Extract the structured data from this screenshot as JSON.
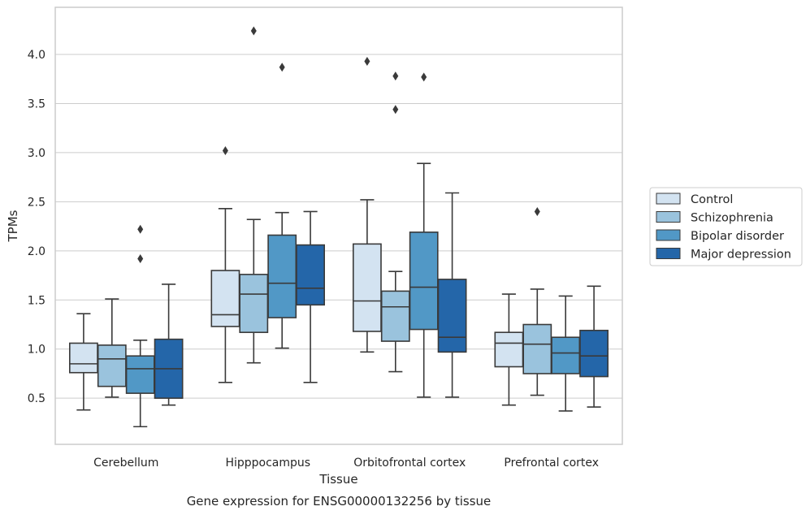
{
  "chart_data": {
    "type": "box",
    "xlabel": "Tissue",
    "ylabel": "TPMs",
    "caption": "Gene expression for ENSG00000132256 by tissue",
    "categories": [
      "Cerebellum",
      "Hipppocampus",
      "Orbitofrontal cortex",
      "Prefrontal cortex"
    ],
    "yticks": [
      0.5,
      1.0,
      1.5,
      2.0,
      2.5,
      3.0,
      3.5,
      4.0
    ],
    "ytick_labels": [
      "0.5",
      "1.0",
      "1.5",
      "2.0",
      "2.5",
      "3.0",
      "3.5",
      "4.0"
    ],
    "ylim": [
      0.03,
      4.48
    ],
    "grid": true,
    "legend_position": "right",
    "series": [
      {
        "name": "Control",
        "color": "#d3e3f1",
        "boxes": [
          {
            "whislo": 0.38,
            "q1": 0.76,
            "med": 0.85,
            "q3": 1.06,
            "whishi": 1.36,
            "fliers": []
          },
          {
            "whislo": 0.66,
            "q1": 1.23,
            "med": 1.35,
            "q3": 1.8,
            "whishi": 2.43,
            "fliers": [
              3.02
            ]
          },
          {
            "whislo": 0.97,
            "q1": 1.18,
            "med": 1.49,
            "q3": 2.07,
            "whishi": 2.52,
            "fliers": [
              3.93
            ]
          },
          {
            "whislo": 0.43,
            "q1": 0.82,
            "med": 1.06,
            "q3": 1.17,
            "whishi": 1.56,
            "fliers": []
          }
        ]
      },
      {
        "name": "Schizophrenia",
        "color": "#9ac3dd",
        "boxes": [
          {
            "whislo": 0.51,
            "q1": 0.62,
            "med": 0.9,
            "q3": 1.04,
            "whishi": 1.51,
            "fliers": []
          },
          {
            "whislo": 0.86,
            "q1": 1.17,
            "med": 1.56,
            "q3": 1.76,
            "whishi": 2.32,
            "fliers": [
              4.24
            ]
          },
          {
            "whislo": 0.77,
            "q1": 1.08,
            "med": 1.43,
            "q3": 1.59,
            "whishi": 1.79,
            "fliers": [
              3.44,
              3.78
            ]
          },
          {
            "whislo": 0.53,
            "q1": 0.75,
            "med": 1.05,
            "q3": 1.25,
            "whishi": 1.61,
            "fliers": [
              2.4
            ]
          }
        ]
      },
      {
        "name": "Bipolar disorder",
        "color": "#5198c6",
        "boxes": [
          {
            "whislo": 0.21,
            "q1": 0.55,
            "med": 0.8,
            "q3": 0.93,
            "whishi": 1.09,
            "fliers": [
              1.92,
              2.22
            ]
          },
          {
            "whislo": 1.01,
            "q1": 1.32,
            "med": 1.67,
            "q3": 2.16,
            "whishi": 2.39,
            "fliers": [
              3.87
            ]
          },
          {
            "whislo": 0.51,
            "q1": 1.2,
            "med": 1.63,
            "q3": 2.19,
            "whishi": 2.89,
            "fliers": [
              3.77
            ]
          },
          {
            "whislo": 0.37,
            "q1": 0.75,
            "med": 0.96,
            "q3": 1.12,
            "whishi": 1.54,
            "fliers": []
          }
        ]
      },
      {
        "name": "Major depression",
        "color": "#2466a9",
        "boxes": [
          {
            "whislo": 0.43,
            "q1": 0.5,
            "med": 0.8,
            "q3": 1.1,
            "whishi": 1.66,
            "fliers": []
          },
          {
            "whislo": 0.66,
            "q1": 1.45,
            "med": 1.62,
            "q3": 2.06,
            "whishi": 2.4,
            "fliers": []
          },
          {
            "whislo": 0.51,
            "q1": 0.97,
            "med": 1.12,
            "q3": 1.71,
            "whishi": 2.59,
            "fliers": []
          },
          {
            "whislo": 0.41,
            "q1": 0.72,
            "med": 0.93,
            "q3": 1.19,
            "whishi": 1.64,
            "fliers": []
          }
        ]
      }
    ]
  }
}
